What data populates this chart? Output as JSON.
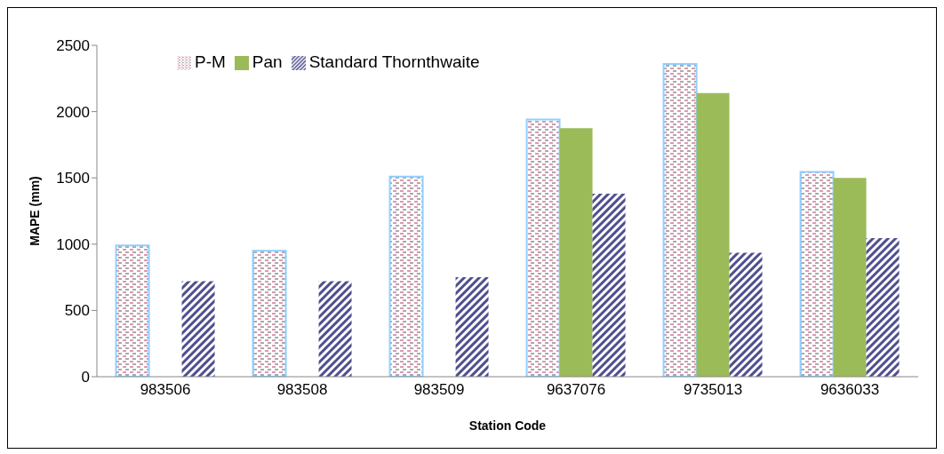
{
  "chart_data": {
    "type": "bar",
    "xlabel": "Station Code",
    "ylabel": "MAPE (mm)",
    "categories": [
      "983506",
      "983508",
      "983509",
      "9637076",
      "9735013",
      "9636033"
    ],
    "series": [
      {
        "name": "P-M",
        "color": "#8ecfff",
        "values": [
          990,
          950,
          1510,
          1940,
          2360,
          1545
        ]
      },
      {
        "name": "Pan",
        "color": "#9bbb59",
        "values": [
          null,
          null,
          null,
          1875,
          2140,
          1500
        ]
      },
      {
        "name": "Standard Thornthwaite",
        "color": "#4f4f8f",
        "values": [
          720,
          720,
          750,
          1380,
          935,
          1045
        ]
      }
    ],
    "ylim": [
      0,
      2500
    ],
    "yticks": [
      0,
      500,
      1000,
      1500,
      2000,
      2500
    ],
    "legend": "top left"
  }
}
